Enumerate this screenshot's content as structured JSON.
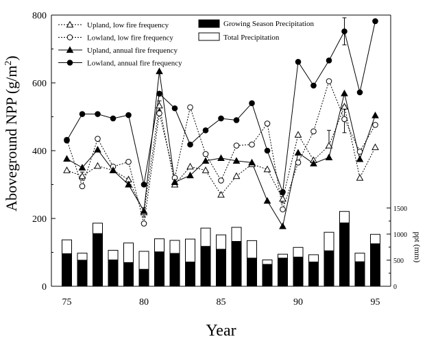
{
  "chart_data": {
    "type": "line",
    "xlabel": "Year",
    "ylabel": "Aboveground NPP (g/m",
    "ylabel_sup": "2",
    "ylabel_close": ")",
    "y2label": "ppt (mm)",
    "xlim": [
      74,
      96
    ],
    "ylim": [
      0,
      800
    ],
    "y2lim": [
      0,
      5200
    ],
    "x_ticks": [
      75,
      80,
      85,
      90,
      95
    ],
    "y_ticks": [
      0,
      200,
      400,
      600,
      800
    ],
    "y2_ticks": [
      0,
      500,
      1000,
      1500
    ],
    "legend_placement": "top-left",
    "x": [
      75,
      76,
      77,
      78,
      79,
      80,
      81,
      82,
      83,
      84,
      85,
      86,
      87,
      88,
      89,
      90,
      91,
      92,
      93,
      94,
      95
    ],
    "series": [
      {
        "name": "Upland, low fire frequency",
        "marker": "open-triangle",
        "dash": "dotted",
        "values": [
          342,
          325,
          355,
          342,
          315,
          218,
          533,
          300,
          353,
          342,
          270,
          325,
          360,
          345,
          258,
          447,
          372,
          415,
          530,
          320,
          410
        ]
      },
      {
        "name": "Lowland, low fire frequency",
        "marker": "open-circle",
        "dash": "dotted",
        "values": [
          432,
          295,
          435,
          353,
          367,
          185,
          510,
          320,
          528,
          390,
          312,
          415,
          418,
          480,
          227,
          365,
          457,
          605,
          493,
          397,
          476
        ]
      },
      {
        "name": "Upland, annual fire frequency",
        "marker": "filled-triangle",
        "dash": "solid",
        "values": [
          376,
          350,
          403,
          342,
          300,
          222,
          634,
          307,
          327,
          370,
          378,
          370,
          365,
          252,
          177,
          394,
          362,
          380,
          569,
          375,
          504
        ]
      },
      {
        "name": "Lowland, annual fire frequency",
        "marker": "filled-circle",
        "dash": "solid",
        "values": [
          430,
          508,
          508,
          495,
          505,
          300,
          568,
          525,
          418,
          460,
          495,
          490,
          540,
          400,
          278,
          662,
          592,
          666,
          752,
          572,
          782
        ]
      }
    ],
    "error_bars": [
      {
        "x": 76,
        "y": 325,
        "minus": 12,
        "plus": 12
      },
      {
        "x": 80,
        "y": 218,
        "minus": 14,
        "plus": 14
      },
      {
        "x": 81,
        "y": 533,
        "minus": 14,
        "plus": 14
      },
      {
        "x": 89,
        "y": 258,
        "minus": 12,
        "plus": 12
      },
      {
        "x": 92,
        "y": 415,
        "minus": 0,
        "plus": 45
      },
      {
        "x": 93,
        "y": 493,
        "minus": 40,
        "plus": 40
      },
      {
        "x": 93,
        "y": 752,
        "minus": 40,
        "plus": 40
      }
    ],
    "precipitation": {
      "growing_season_name": "Growing Season Precipitation",
      "total_name": "Total Precipitation",
      "growing_season": [
        625,
        500,
        1010,
        505,
        455,
        325,
        660,
        630,
        465,
        765,
        710,
        860,
        540,
        420,
        540,
        560,
        465,
        680,
        1215,
        470,
        815
      ],
      "total": [
        890,
        635,
        1210,
        690,
        830,
        670,
        910,
        880,
        905,
        1115,
        985,
        1130,
        875,
        505,
        615,
        745,
        605,
        1035,
        1435,
        635,
        995
      ]
    }
  }
}
